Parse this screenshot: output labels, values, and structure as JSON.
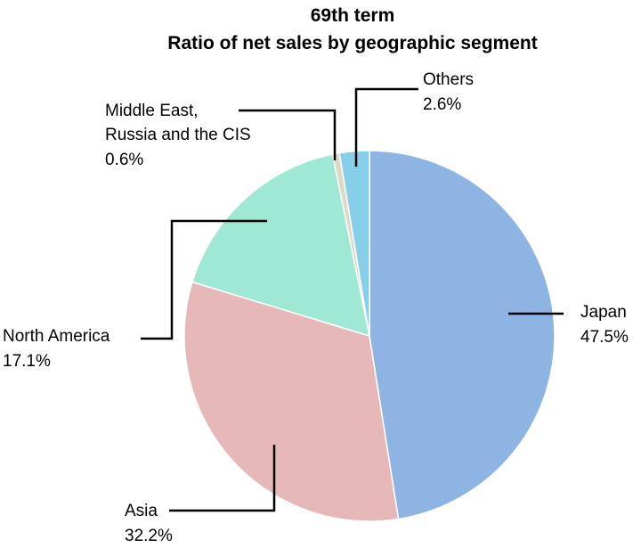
{
  "chart_data": {
    "type": "pie",
    "title": "69th term",
    "subtitle": "Ratio of net sales by geographic segment",
    "start_angle_deg": 0,
    "direction": "clockwise",
    "legend": "none",
    "slices": [
      {
        "label": "Japan",
        "value": 47.5,
        "value_label": "47.5%",
        "color": "#8eb4e3"
      },
      {
        "label": "Asia",
        "value": 32.2,
        "value_label": "32.2%",
        "color": "#e6b9b8"
      },
      {
        "label": "North America",
        "value": 17.1,
        "value_label": "17.1%",
        "color": "#9fe8d4"
      },
      {
        "label": "Middle East, Russia and the CIS",
        "value": 0.6,
        "value_label": "0.6%",
        "color": "#ddd9c3"
      },
      {
        "label": "Others",
        "value": 2.6,
        "value_label": "2.6%",
        "color": "#87cfe8"
      }
    ]
  }
}
